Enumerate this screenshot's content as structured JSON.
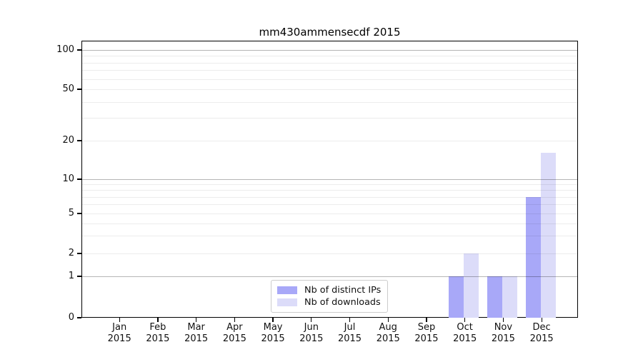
{
  "chart_data": {
    "type": "bar",
    "title": "mm430ammensecdf 2015",
    "x_categories": [
      "Jan 2015",
      "Feb 2015",
      "Mar 2015",
      "Apr 2015",
      "May 2015",
      "Jun 2015",
      "Jul 2015",
      "Aug 2015",
      "Sep 2015",
      "Oct 2015",
      "Nov 2015",
      "Dec 2015"
    ],
    "x_tick_months": [
      "Jan",
      "Feb",
      "Mar",
      "Apr",
      "May",
      "Jun",
      "Jul",
      "Aug",
      "Sep",
      "Oct",
      "Nov",
      "Dec"
    ],
    "x_tick_year": "2015",
    "series": [
      {
        "name": "Nb of distinct IPs",
        "color": "#a8a8f8",
        "values": [
          0,
          0,
          0,
          0,
          0,
          0,
          0,
          0,
          0,
          1,
          1,
          7
        ]
      },
      {
        "name": "Nb of downloads",
        "color": "#dcdcf9",
        "values": [
          0,
          0,
          0,
          0,
          0,
          0,
          0,
          0,
          0,
          2,
          1,
          16
        ]
      }
    ],
    "y_axis": {
      "scale": "symlog",
      "tick_values": [
        0,
        1,
        2,
        5,
        10,
        20,
        50,
        100
      ],
      "tick_labels": [
        "0",
        "1",
        "2",
        "5",
        "10",
        "20",
        "50",
        "100"
      ],
      "major_gridlines": [
        1,
        10,
        100
      ],
      "minor_gridlines": [
        2,
        3,
        4,
        5,
        6,
        7,
        8,
        9,
        20,
        30,
        40,
        50,
        60,
        70,
        80,
        90
      ],
      "ylim": [
        0,
        118
      ]
    },
    "legend": {
      "position": "lower center",
      "items": [
        "Nb of distinct IPs",
        "Nb of downloads"
      ]
    },
    "colors": {
      "distinct_ips_bar": "#a8a8f8",
      "downloads_bar": "#dcdcf9",
      "major_grid": "#b5b5b5",
      "minor_grid": "#ececec",
      "axis": "#000000",
      "text": "#111111",
      "legend_border": "#cccccc"
    }
  }
}
